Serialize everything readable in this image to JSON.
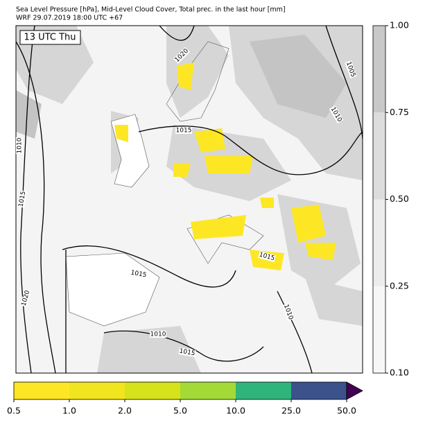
{
  "header": {
    "title": "Sea Level Pressure [hPa], Mid-Level Cloud Cover, Total prec. in the last hour [mm]",
    "subtitle": "WRF 29.07.2019 18:00 UTC +67"
  },
  "time_label": "13 UTC Thu",
  "isobar_labels": [
    "1020",
    "1005",
    "1010",
    "1015",
    "1010",
    "1015",
    "1015",
    "1015",
    "1020",
    "1010",
    "1010",
    "1015"
  ],
  "cloud_colorbar": {
    "ticks": [
      {
        "value": 0.1,
        "label": "0.10"
      },
      {
        "value": 0.25,
        "label": "0.25"
      },
      {
        "value": 0.5,
        "label": "0.50"
      },
      {
        "value": 0.75,
        "label": "0.75"
      },
      {
        "value": 1,
        "label": "1.00"
      }
    ],
    "colors": [
      "#f7f7f7",
      "#ececec",
      "#dcdcdc",
      "#c8c8c8"
    ]
  },
  "precip_colorbar": {
    "ticks": [
      0.5,
      {
        "value": 1,
        "label": "1.0"
      },
      {
        "value": 2,
        "label": "2.0"
      },
      {
        "value": 5,
        "label": "5.0"
      },
      {
        "value": 10,
        "label": "10.0"
      },
      {
        "value": 25,
        "label": "25.0"
      },
      {
        "value": 50,
        "label": "50.0"
      }
    ],
    "colors": [
      "#fde725",
      "#f0e51e",
      "#d6e21b",
      "#a3da37",
      "#2fb47c",
      "#3b528b"
    ],
    "extend_color": "#440154"
  }
}
